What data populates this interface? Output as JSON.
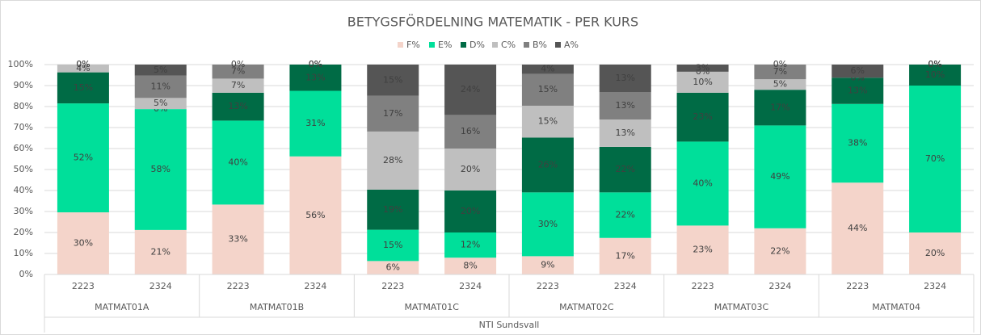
{
  "chart_data": {
    "type": "stacked_bar",
    "title": "BETYGSFÖRDELNING MATEMATIK - PER KURS",
    "categories": [
      "2223",
      "2324",
      "2223",
      "2324",
      "2223",
      "2324",
      "2223",
      "2324",
      "2223",
      "2324",
      "2223",
      "2324"
    ],
    "groups": [
      "MATMAT01A",
      "MATMAT01B",
      "MATMAT01C",
      "MATMAT02C",
      "MATMAT03C",
      "MATMAT04"
    ],
    "outer_label": "NTI Sundsvall",
    "legend": "top",
    "grid": true,
    "ylim": [
      0,
      100
    ],
    "yticks": [
      {
        "value": 0,
        "label": "0%"
      },
      {
        "value": 10,
        "label": "10%"
      },
      {
        "value": 20,
        "label": "20%"
      },
      {
        "value": 30,
        "label": "30%"
      },
      {
        "value": 40,
        "label": "40%"
      },
      {
        "value": 50,
        "label": "50%"
      },
      {
        "value": 60,
        "label": "60%"
      },
      {
        "value": 70,
        "label": "70%"
      },
      {
        "value": 80,
        "label": "80%"
      },
      {
        "value": 90,
        "label": "90%"
      },
      {
        "value": 100,
        "label": "100%"
      }
    ],
    "series": [
      {
        "name": "F%",
        "color": "#f4d4ca",
        "values": [
          29.6,
          21.2,
          33.3,
          56.25,
          6.4,
          8,
          8.7,
          17.4,
          23.3,
          22,
          43.75,
          20
        ],
        "value_labels": [
          "30%",
          "21%",
          "33%",
          "56%",
          "6%",
          "8%",
          "9%",
          "17%",
          "23%",
          "22%",
          "44%",
          "20%"
        ]
      },
      {
        "name": "E%",
        "color": "#00df9a",
        "values": [
          51.9,
          57.6,
          40,
          31.25,
          14.9,
          12,
          30.4,
          21.7,
          40,
          49,
          37.5,
          70
        ],
        "value_labels": [
          "52%",
          "58%",
          "40%",
          "31%",
          "15%",
          "12%",
          "30%",
          "22%",
          "40%",
          "49%",
          "38%",
          "70%"
        ]
      },
      {
        "name": "D%",
        "color": "#006b45",
        "values": [
          14.8,
          0,
          13.3,
          12.5,
          19.1,
          20,
          26.1,
          21.7,
          23.3,
          17,
          12.5,
          10
        ],
        "value_labels": [
          "15%",
          "0%",
          "13%",
          "13%",
          "19%",
          "20%",
          "26%",
          "22%",
          "23%",
          "17%",
          "13%",
          "10%"
        ]
      },
      {
        "name": "C%",
        "color": "#bfbfbf",
        "values": [
          3.7,
          5.3,
          6.7,
          0,
          27.7,
          20,
          15.2,
          13,
          10,
          5,
          0,
          0
        ],
        "value_labels": [
          "4%",
          "5%",
          "7%",
          "0%",
          "28%",
          "20%",
          "15%",
          "13%",
          "10%",
          "5%",
          "0%",
          "0%"
        ]
      },
      {
        "name": "B%",
        "color": "#808080",
        "values": [
          0,
          10.6,
          6.7,
          0,
          17,
          16,
          15.2,
          13,
          0,
          7,
          0,
          0
        ],
        "value_labels": [
          "0%",
          "11%",
          "7%",
          "0%",
          "17%",
          "16%",
          "15%",
          "13%",
          "0%",
          "7%",
          "0%",
          "0%"
        ]
      },
      {
        "name": "A%",
        "color": "#555555",
        "values": [
          0,
          5.3,
          0,
          0,
          14.9,
          24,
          4.4,
          13.2,
          3.4,
          0,
          6.25,
          0
        ],
        "value_labels": [
          "0%",
          "5%",
          "0%",
          "0%",
          "15%",
          "24%",
          "4%",
          "13%",
          "3%",
          "0%",
          "6%",
          "0%"
        ]
      }
    ]
  }
}
